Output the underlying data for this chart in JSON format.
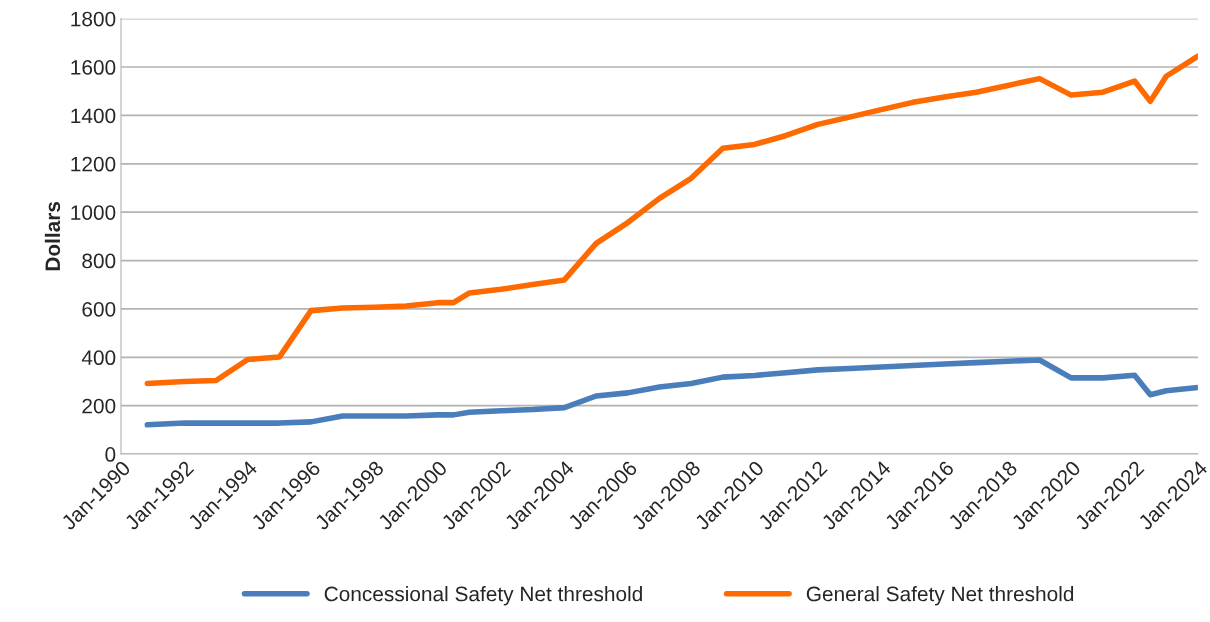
{
  "chart_data": {
    "type": "line",
    "ylabel": "Dollars",
    "x": [
      "1990-11",
      "1992-01",
      "1993-01",
      "1994-01",
      "1995-01",
      "1996-01",
      "1997-01",
      "1998-01",
      "1999-01",
      "2000-01",
      "2000-07",
      "2001-01",
      "2002-01",
      "2003-01",
      "2004-01",
      "2005-01",
      "2006-01",
      "2007-01",
      "2008-01",
      "2009-01",
      "2010-01",
      "2011-01",
      "2012-01",
      "2013-01",
      "2014-01",
      "2015-01",
      "2016-01",
      "2017-01",
      "2018-01",
      "2019-01",
      "2020-01",
      "2021-01",
      "2022-01",
      "2022-07",
      "2023-01",
      "2024-01"
    ],
    "series": [
      {
        "name": "Concessional Safety Net threshold",
        "color": "#4a7ebb",
        "values": [
          121,
          128,
          128,
          128,
          128,
          133,
          157,
          157,
          157,
          162,
          162,
          173,
          179,
          184,
          192,
          240,
          253,
          277,
          292,
          318,
          325,
          336,
          348,
          354,
          360,
          366,
          372,
          378,
          384,
          389,
          315,
          315,
          326,
          245,
          262,
          275
        ]
      },
      {
        "name": "General Safety Net threshold",
        "color": "#ff6a00",
        "values": [
          292,
          300,
          304,
          391,
          401,
          593,
          604,
          607,
          612,
          626,
          626,
          666,
          681,
          701,
          720,
          871,
          957,
          1057,
          1140,
          1264,
          1280,
          1317,
          1363,
          1393,
          1424,
          1454,
          1476,
          1496,
          1524,
          1552,
          1484,
          1496,
          1542,
          1458,
          1562,
          1645
        ]
      }
    ],
    "xlim": [
      "1990-01",
      "2024-01"
    ],
    "xticks": [
      {
        "value": "1990-01",
        "label": "Jan-1990"
      },
      {
        "value": "1992-01",
        "label": "Jan-1992"
      },
      {
        "value": "1994-01",
        "label": "Jan-1994"
      },
      {
        "value": "1996-01",
        "label": "Jan-1996"
      },
      {
        "value": "1998-01",
        "label": "Jan-1998"
      },
      {
        "value": "2000-01",
        "label": "Jan-2000"
      },
      {
        "value": "2002-01",
        "label": "Jan-2002"
      },
      {
        "value": "2004-01",
        "label": "Jan-2004"
      },
      {
        "value": "2006-01",
        "label": "Jan-2006"
      },
      {
        "value": "2008-01",
        "label": "Jan-2008"
      },
      {
        "value": "2010-01",
        "label": "Jan-2010"
      },
      {
        "value": "2012-01",
        "label": "Jan-2012"
      },
      {
        "value": "2014-01",
        "label": "Jan-2014"
      },
      {
        "value": "2016-01",
        "label": "Jan-2016"
      },
      {
        "value": "2018-01",
        "label": "Jan-2018"
      },
      {
        "value": "2020-01",
        "label": "Jan-2020"
      },
      {
        "value": "2022-01",
        "label": "Jan-2022"
      },
      {
        "value": "2024-01",
        "label": "Jan-2024"
      }
    ],
    "ylim": [
      0,
      1800
    ],
    "yticks": [
      0,
      200,
      400,
      600,
      800,
      1000,
      1200,
      1400,
      1600,
      1800
    ],
    "grid": "y",
    "legend": "bottom",
    "marker": "none",
    "line_style": "solid"
  }
}
